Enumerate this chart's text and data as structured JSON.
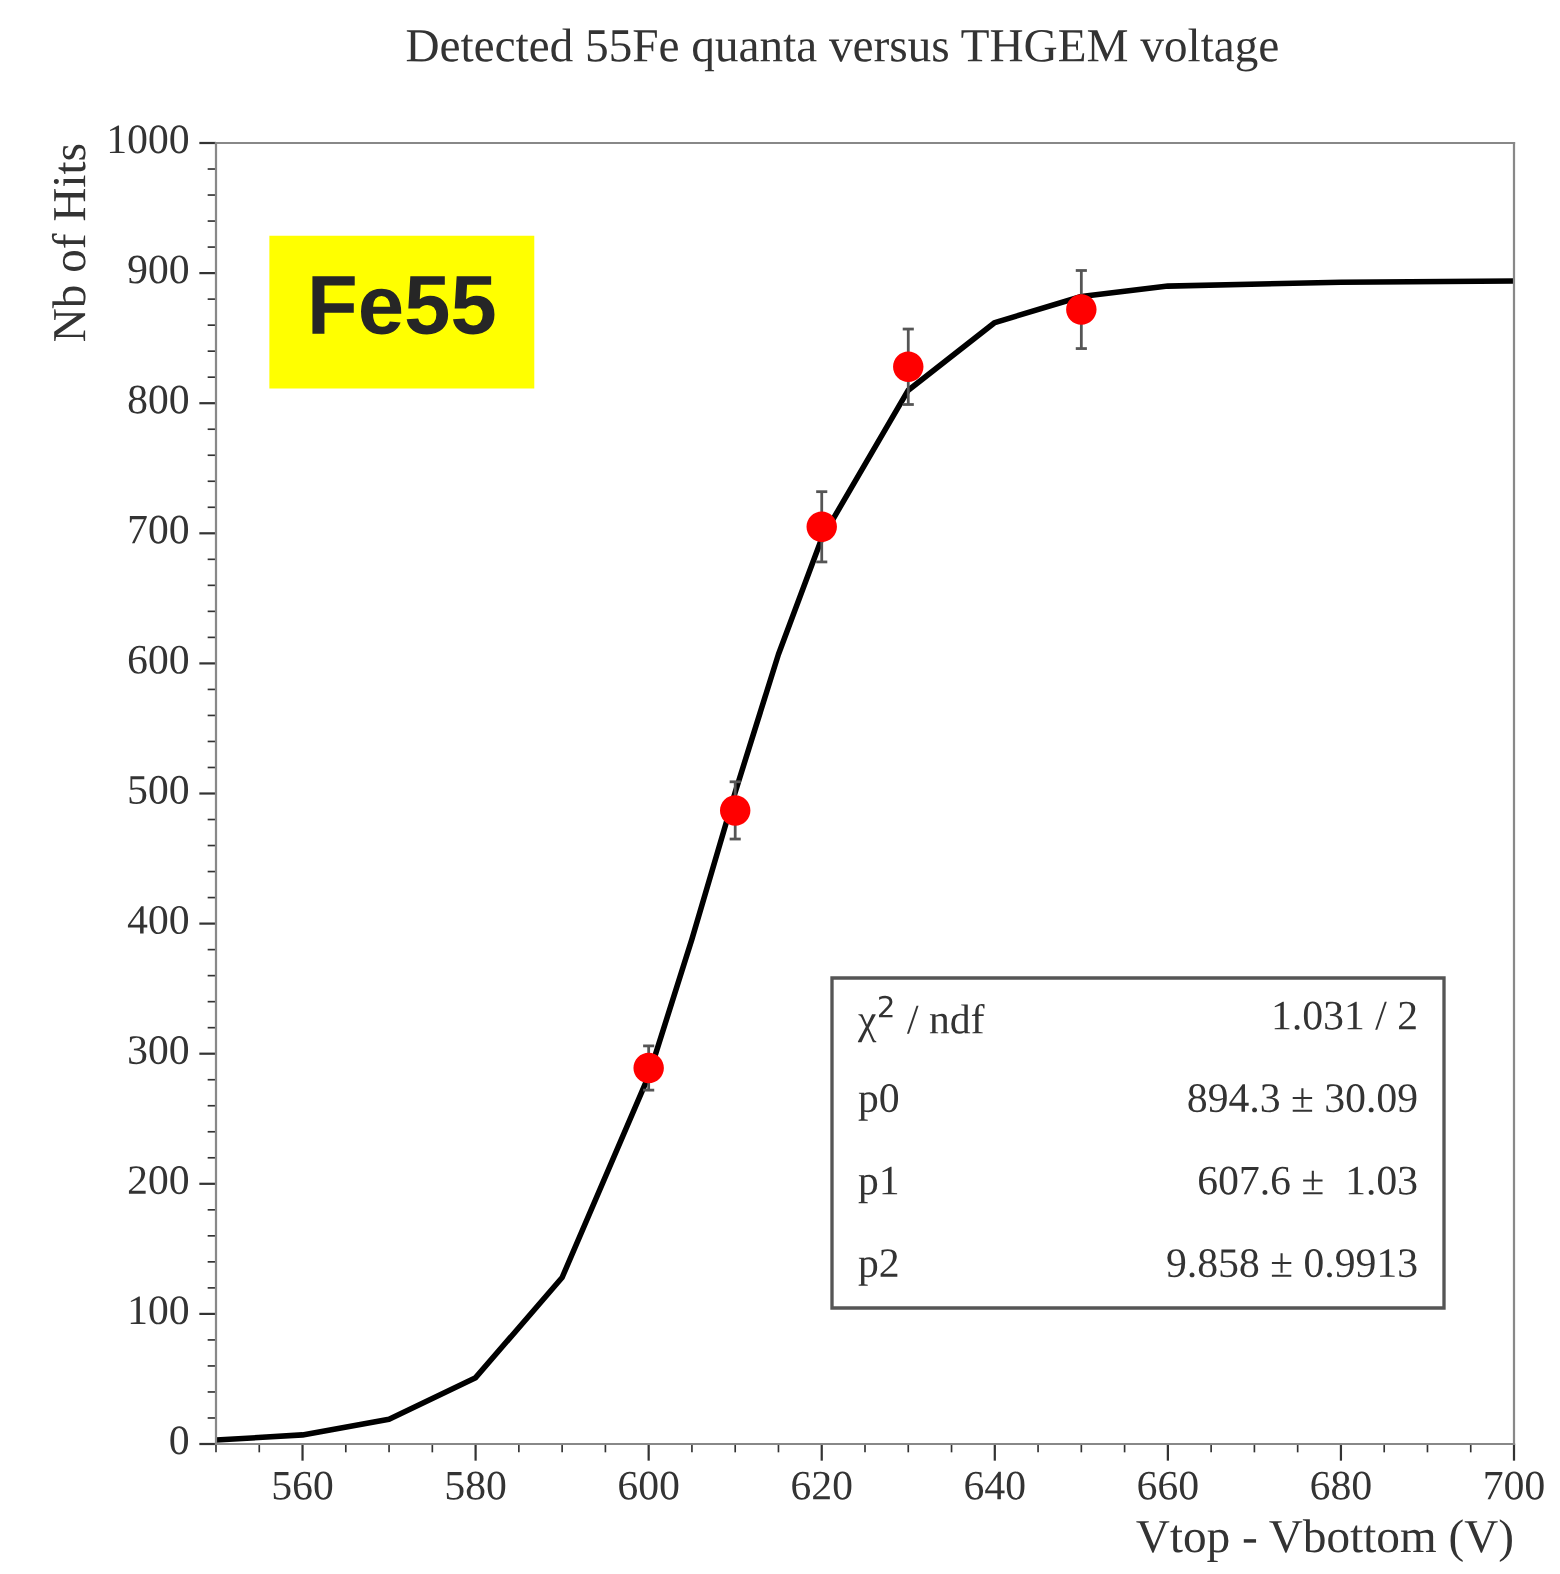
{
  "chart_data": {
    "type": "scatter",
    "title": "Detected 55Fe quanta versus THGEM voltage",
    "xlabel": "Vtop - Vbottom (V)",
    "ylabel": "Nb of Hits",
    "xlim": [
      550,
      700
    ],
    "xticks": [
      560,
      580,
      600,
      620,
      640,
      660,
      680,
      700
    ],
    "ylim": [
      0,
      1000
    ],
    "yticks": [
      0,
      100,
      200,
      300,
      400,
      500,
      600,
      700,
      800,
      900,
      1000
    ],
    "grid": false,
    "legend": false,
    "series": [
      {
        "color": "#ff0000",
        "marker": "circle",
        "x": [
          600,
          610,
          620,
          630,
          650
        ],
        "values": [
          289,
          487,
          705,
          828,
          872
        ],
        "errors": [
          17,
          22,
          27,
          29,
          30
        ]
      },
      {
        "type": "line",
        "color": "#000000",
        "marker": "none",
        "line_style": "solid",
        "x": [
          550,
          560,
          570,
          580,
          590,
          600,
          605,
          610,
          615,
          620,
          630,
          640,
          650,
          660,
          680,
          700
        ],
        "values": [
          3,
          7,
          19,
          51,
          128,
          283,
          388,
          501,
          607,
          696,
          810,
          862,
          882,
          890,
          893,
          894
        ]
      }
    ],
    "annotations": [
      "Fe55",
      "χ$^{2}$ / ndf",
      "1.031 / 2",
      "p0",
      "894.3 ± 30.09",
      "p1",
      "607.6 ±  1.03",
      "p2",
      "9.858 ± 0.9913"
    ]
  }
}
